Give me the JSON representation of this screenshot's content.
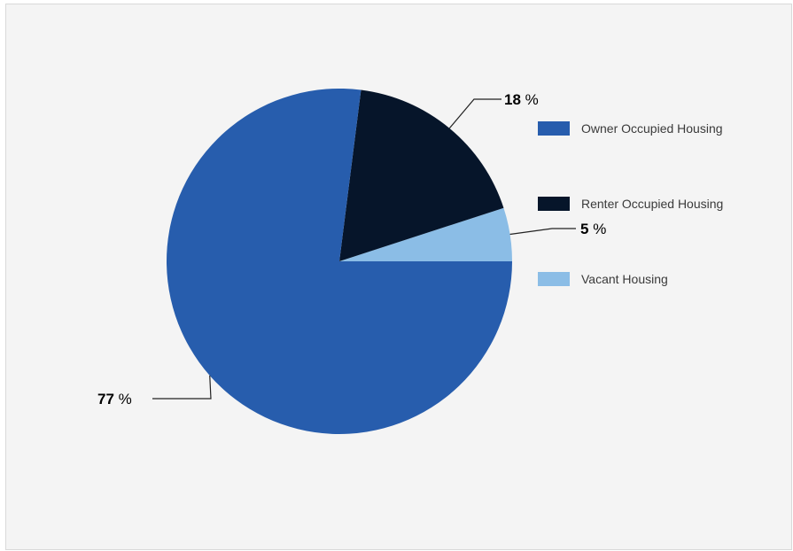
{
  "chart_data": {
    "type": "pie",
    "title": "",
    "slices": [
      {
        "label": "Owner Occupied Housing",
        "value": 77,
        "display": "77 %",
        "color": "#275dad"
      },
      {
        "label": "Renter Occupied Housing",
        "value": 18,
        "display": "18 %",
        "color": "#06152a"
      },
      {
        "label": "Vacant Housing",
        "value": 5,
        "display": "5 %",
        "color": "#8bbde6"
      }
    ],
    "legend_position": "right",
    "start": "3 o'clock, counter-clockwise order: Vacant, Renter, Owner"
  },
  "colors": {
    "background": "#f4f4f4",
    "border": "#d9d9d9",
    "leader_line": "#222222"
  }
}
